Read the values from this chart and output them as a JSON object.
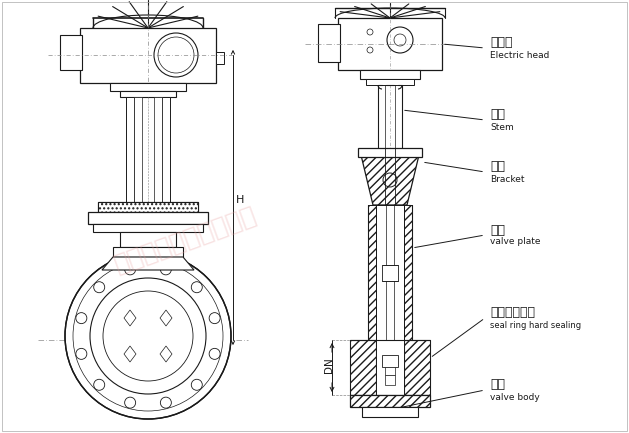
{
  "bg_color": "#ffffff",
  "line_color": "#1a1a1a",
  "watermark_text": "上海朝泉阀门有限公司",
  "watermark_color": "#e8a0a0",
  "watermark_alpha": 0.3,
  "labels": {
    "electric_head_cn": "电动头",
    "electric_head_en": "Electric head",
    "stem_cn": "阀杆",
    "stem_en": "Stem",
    "bracket_cn": "支架",
    "bracket_en": "Bracket",
    "valve_plate_cn": "闸板",
    "valve_plate_en": "valve plate",
    "seal_cn": "密封圈硬密封",
    "seal_en": "seal ring hard sealing",
    "valve_body_cn": "阀体",
    "valve_body_en": "valve body",
    "dim_h": "H",
    "dim_dn": "DN"
  }
}
